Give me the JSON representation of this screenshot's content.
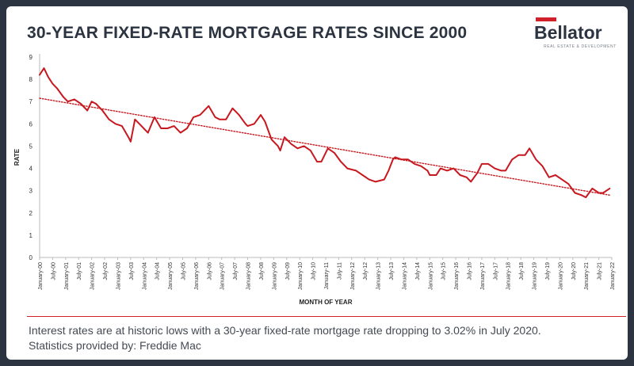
{
  "header": {
    "title": "30-YEAR FIXED-RATE MORTGAGE RATES SINCE 2000",
    "logo_text": "Bellator",
    "logo_subtext": "REAL ESTATE & DEVELOPMENT"
  },
  "caption": {
    "line1": "Interest rates are at historic lows with a 30-year fixed-rate mortgage rate dropping to 3.02% in July 2020.",
    "line2": "Statistics provided by: Freddie Mac"
  },
  "colors": {
    "series": "#c8181f",
    "trend": "#c8181f",
    "title": "#2b3440",
    "accent": "#d0202a",
    "frame": "#2b3440"
  },
  "chart_data": {
    "type": "line",
    "title": "30-YEAR FIXED-RATE MORTGAGE RATES SINCE 2000",
    "xlabel": "MONTH OF YEAR",
    "ylabel": "RATE",
    "ylim": [
      0,
      9
    ],
    "yticks": [
      0,
      1,
      2,
      3,
      4,
      5,
      6,
      7,
      8,
      9
    ],
    "grid": false,
    "legend": "none",
    "x_tick_labels": [
      "January-00",
      "July-00",
      "January-01",
      "July-01",
      "January-02",
      "July-02",
      "January-03",
      "July-03",
      "January-04",
      "July-04",
      "January-05",
      "July-05",
      "January-06",
      "July-06",
      "January-07",
      "July-07",
      "January-08",
      "July-08",
      "January-09",
      "July-09",
      "January-10",
      "July-10",
      "January-11",
      "July-11",
      "January-12",
      "July-12",
      "January-13",
      "July-13",
      "January-14",
      "July-14",
      "January-15",
      "July-15",
      "January-16",
      "July-16",
      "January-17",
      "July-17",
      "January-18",
      "July-18",
      "January-19",
      "July-19",
      "January-20",
      "July-20",
      "January-21",
      "July-21",
      "January-22"
    ],
    "series": [
      {
        "style": "solid",
        "x": [
          "2000-01",
          "2000-03",
          "2000-05",
          "2000-07",
          "2000-09",
          "2000-12",
          "2001-02",
          "2001-05",
          "2001-08",
          "2001-11",
          "2002-01",
          "2002-03",
          "2002-06",
          "2002-09",
          "2002-12",
          "2003-03",
          "2003-06",
          "2003-07",
          "2003-09",
          "2003-12",
          "2004-03",
          "2004-06",
          "2004-09",
          "2004-12",
          "2005-03",
          "2005-06",
          "2005-09",
          "2005-12",
          "2006-03",
          "2006-07",
          "2006-10",
          "2006-12",
          "2007-03",
          "2007-06",
          "2007-09",
          "2007-12",
          "2008-01",
          "2008-04",
          "2008-07",
          "2008-09",
          "2008-12",
          "2009-03",
          "2009-04",
          "2009-06",
          "2009-09",
          "2009-12",
          "2010-03",
          "2010-06",
          "2010-09",
          "2010-11",
          "2011-02",
          "2011-05",
          "2011-08",
          "2011-11",
          "2012-03",
          "2012-06",
          "2012-09",
          "2012-12",
          "2013-04",
          "2013-06",
          "2013-08",
          "2013-09",
          "2013-12",
          "2014-03",
          "2014-06",
          "2014-09",
          "2014-12",
          "2015-01",
          "2015-04",
          "2015-06",
          "2015-09",
          "2015-12",
          "2016-03",
          "2016-06",
          "2016-08",
          "2016-11",
          "2017-01",
          "2017-04",
          "2017-07",
          "2017-10",
          "2017-12",
          "2018-03",
          "2018-06",
          "2018-09",
          "2018-11",
          "2019-02",
          "2019-05",
          "2019-08",
          "2019-11",
          "2020-02",
          "2020-05",
          "2020-08",
          "2020-11",
          "2021-01",
          "2021-04",
          "2021-07",
          "2021-09",
          "2021-12"
        ],
        "y": [
          8.2,
          8.5,
          8.1,
          7.8,
          7.6,
          7.2,
          7.0,
          7.1,
          6.9,
          6.6,
          7.0,
          6.9,
          6.6,
          6.2,
          6.0,
          5.9,
          5.4,
          5.2,
          6.2,
          5.9,
          5.6,
          6.3,
          5.8,
          5.8,
          5.9,
          5.6,
          5.8,
          6.3,
          6.4,
          6.8,
          6.3,
          6.2,
          6.2,
          6.7,
          6.4,
          6.0,
          5.9,
          6.0,
          6.4,
          6.1,
          5.3,
          5.0,
          4.8,
          5.4,
          5.1,
          4.9,
          5.0,
          4.8,
          4.3,
          4.3,
          4.9,
          4.7,
          4.3,
          4.0,
          3.9,
          3.7,
          3.5,
          3.4,
          3.5,
          3.9,
          4.4,
          4.5,
          4.4,
          4.4,
          4.2,
          4.1,
          3.9,
          3.7,
          3.7,
          4.0,
          3.9,
          4.0,
          3.7,
          3.6,
          3.4,
          3.8,
          4.2,
          4.2,
          4.0,
          3.9,
          3.9,
          4.4,
          4.6,
          4.6,
          4.9,
          4.4,
          4.1,
          3.6,
          3.7,
          3.5,
          3.3,
          2.9,
          2.8,
          2.7,
          3.1,
          2.9,
          2.9,
          3.1
        ]
      },
      {
        "style": "dotted",
        "x": [
          "2000-01",
          "2021-12"
        ],
        "y": [
          7.15,
          2.8
        ]
      }
    ]
  }
}
